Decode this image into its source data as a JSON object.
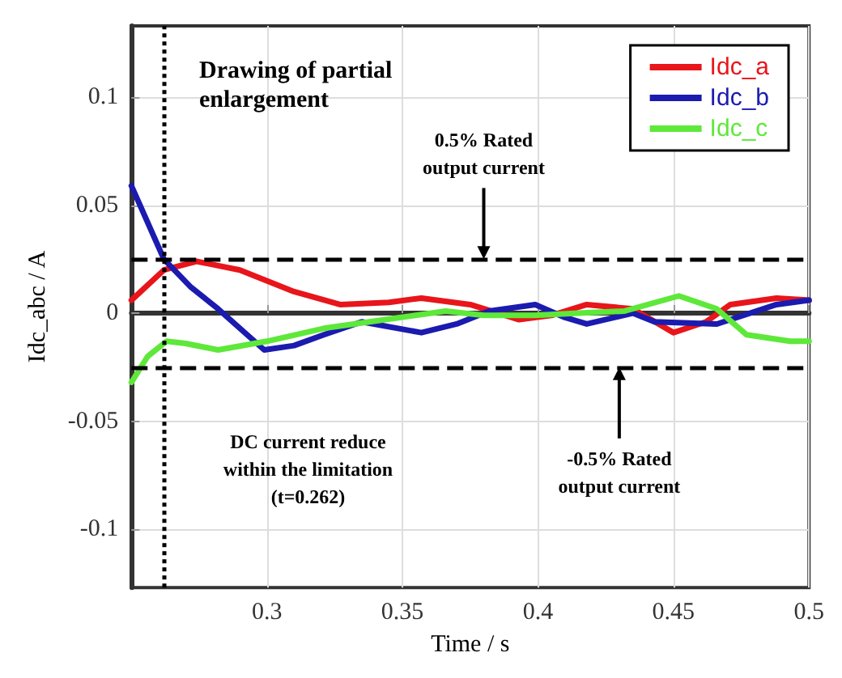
{
  "chart_data": {
    "type": "line",
    "title": "Drawing of partial\nenlargement",
    "xlabel": "Time / s",
    "ylabel": "Idc_abc / A",
    "xlim": [
      0.25,
      0.5
    ],
    "xticks": [
      0.3,
      0.35,
      0.4,
      0.45,
      0.5
    ],
    "ylim": [
      -0.127,
      0.133
    ],
    "yticks": [
      -0.1,
      -0.05,
      0,
      0.05,
      0.1
    ],
    "grid": true,
    "legend": "top right",
    "line_style": "solid",
    "marker": "none",
    "series": [
      {
        "name": "Idc_a",
        "color": "#e8151b",
        "x": [
          0.25,
          0.262,
          0.274,
          0.29,
          0.31,
          0.327,
          0.345,
          0.357,
          0.375,
          0.393,
          0.405,
          0.418,
          0.435,
          0.45,
          0.462,
          0.471,
          0.488,
          0.5
        ],
        "values": [
          0.006,
          0.02,
          0.024,
          0.02,
          0.01,
          0.004,
          0.005,
          0.007,
          0.004,
          -0.003,
          -0.001,
          0.004,
          0.002,
          -0.009,
          -0.004,
          0.004,
          0.007,
          0.006
        ]
      },
      {
        "name": "Idc_b",
        "color": "#1b1bb0",
        "x": [
          0.25,
          0.262,
          0.272,
          0.282,
          0.299,
          0.31,
          0.321,
          0.335,
          0.357,
          0.37,
          0.382,
          0.399,
          0.41,
          0.418,
          0.435,
          0.443,
          0.466,
          0.488,
          0.5
        ],
        "values": [
          0.059,
          0.025,
          0.012,
          0.002,
          -0.017,
          -0.015,
          -0.01,
          -0.004,
          -0.009,
          -0.005,
          0.001,
          0.004,
          -0.002,
          -0.005,
          0,
          -0.004,
          -0.005,
          0.004,
          0.006
        ]
      },
      {
        "name": "Idc_c",
        "color": "#5ee83a",
        "x": [
          0.25,
          0.256,
          0.263,
          0.27,
          0.282,
          0.3,
          0.321,
          0.349,
          0.366,
          0.38,
          0.399,
          0.415,
          0.432,
          0.452,
          0.466,
          0.477,
          0.493,
          0.5
        ],
        "values": [
          -0.032,
          -0.02,
          -0.013,
          -0.014,
          -0.017,
          -0.013,
          -0.007,
          -0.002,
          0.001,
          -0.001,
          -0.001,
          0,
          0.001,
          0.008,
          0.002,
          -0.01,
          -0.013,
          -0.013
        ]
      }
    ],
    "ref_lines": [
      {
        "axis": "y",
        "value": 0.025,
        "color": "#000000",
        "line_style": "dashed"
      },
      {
        "axis": "y",
        "value": -0.025,
        "color": "#000000",
        "line_style": "dashed"
      },
      {
        "axis": "x",
        "value": 0.262,
        "color": "#000000",
        "line_style": "dotted"
      }
    ],
    "annotations": [
      {
        "text": "0.5% Rated\noutput current",
        "x": 0.38,
        "y": 0.025
      },
      {
        "text": "-0.5% Rated\noutput current",
        "x": 0.43,
        "y": -0.025
      },
      "DC current reduce\nwithin the limitation\n(t=0.262)"
    ]
  }
}
